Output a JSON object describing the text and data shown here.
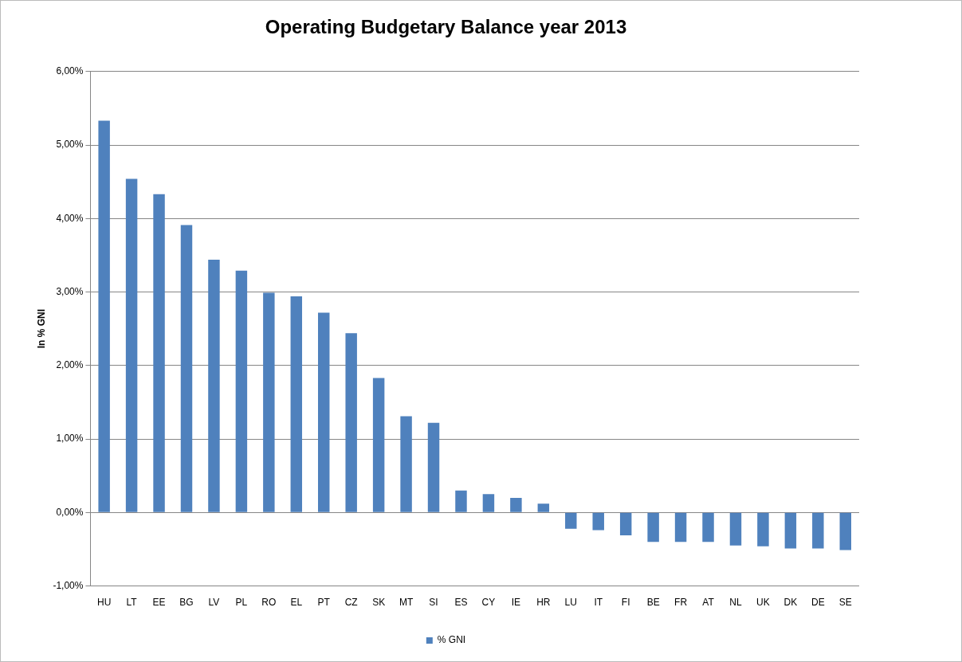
{
  "chart_data": {
    "type": "bar",
    "title": "Operating Budgetary Balance year 2013",
    "ylabel": "In % GNI",
    "categories": [
      "HU",
      "LT",
      "EE",
      "BG",
      "LV",
      "PL",
      "RO",
      "EL",
      "PT",
      "CZ",
      "SK",
      "MT",
      "SI",
      "ES",
      "CY",
      "IE",
      "HR",
      "LU",
      "IT",
      "FI",
      "BE",
      "FR",
      "AT",
      "NL",
      "UK",
      "DK",
      "DE",
      "SE"
    ],
    "series": [
      {
        "name": "% GNI",
        "color": "#4f81bd",
        "values": [
          5.33,
          4.54,
          4.33,
          3.91,
          3.44,
          3.29,
          2.99,
          2.94,
          2.72,
          2.44,
          1.83,
          1.31,
          1.22,
          0.3,
          0.25,
          0.2,
          0.12,
          -0.22,
          -0.24,
          -0.31,
          -0.4,
          -0.4,
          -0.4,
          -0.45,
          -0.46,
          -0.49,
          -0.49,
          -0.51
        ]
      }
    ],
    "ylim": [
      -1,
      6
    ],
    "yticks": [
      {
        "value": -1,
        "label": "-1,00%"
      },
      {
        "value": 0,
        "label": "0,00%"
      },
      {
        "value": 1,
        "label": "1,00%"
      },
      {
        "value": 2,
        "label": "2,00%"
      },
      {
        "value": 3,
        "label": "3,00%"
      },
      {
        "value": 4,
        "label": "4,00%"
      },
      {
        "value": 5,
        "label": "5,00%"
      },
      {
        "value": 6,
        "label": "6,00%"
      }
    ],
    "grid": "y",
    "legend": "bottom"
  }
}
